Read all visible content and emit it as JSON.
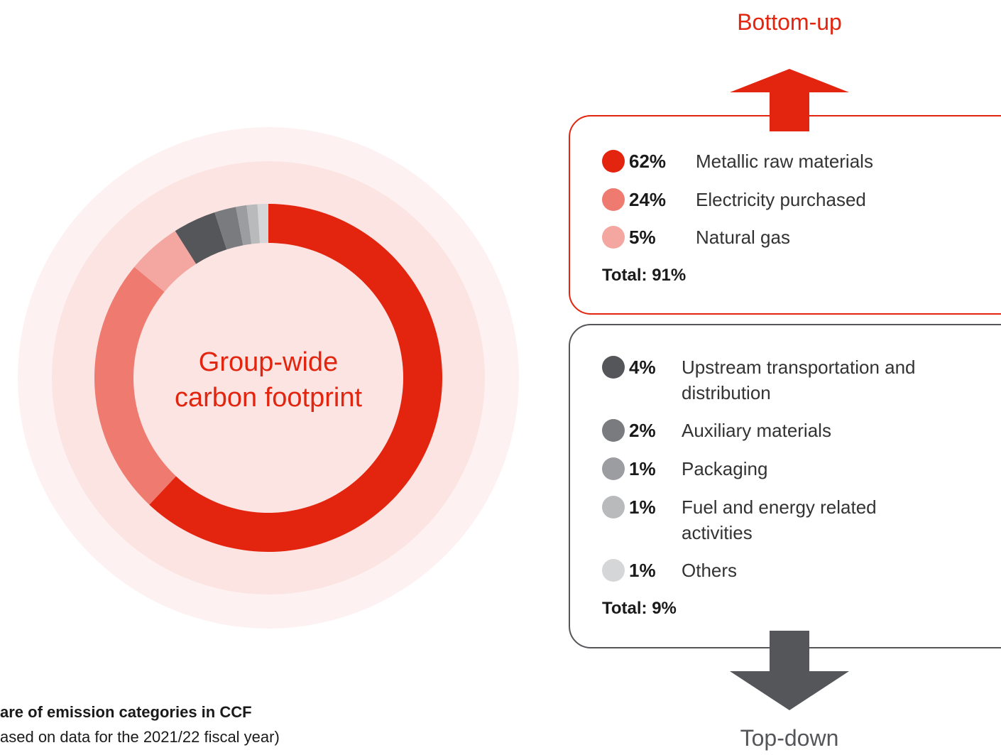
{
  "chart_data": {
    "type": "donut",
    "center_label": [
      "Group-wide",
      "carbon footprint"
    ],
    "categories": [
      "Metallic raw materials",
      "Electricity purchased",
      "Natural gas",
      "Upstream transportation and distribution",
      "Auxiliary materials",
      "Packaging",
      "Fuel and energy related activities",
      "Others"
    ],
    "values": [
      62,
      24,
      5,
      4,
      2,
      1,
      1,
      1
    ],
    "value_labels": [
      "62%",
      "24%",
      "5%",
      "4%",
      "2%",
      "1%",
      "1%",
      "1%"
    ],
    "colors": [
      "#e3240f",
      "#ef7b70",
      "#f4a7a0",
      "#55565a",
      "#7a7b7f",
      "#9c9da0",
      "#b9babc",
      "#d5d6d8"
    ],
    "groups": [
      {
        "label": "Bottom-up",
        "total": "Total: 91%"
      },
      {
        "label": "Top-down",
        "total": "Total: 9%"
      }
    ],
    "caption": [
      "are of emission categories in CCF",
      "ased on data for the 2021/22 fiscal year)"
    ]
  }
}
